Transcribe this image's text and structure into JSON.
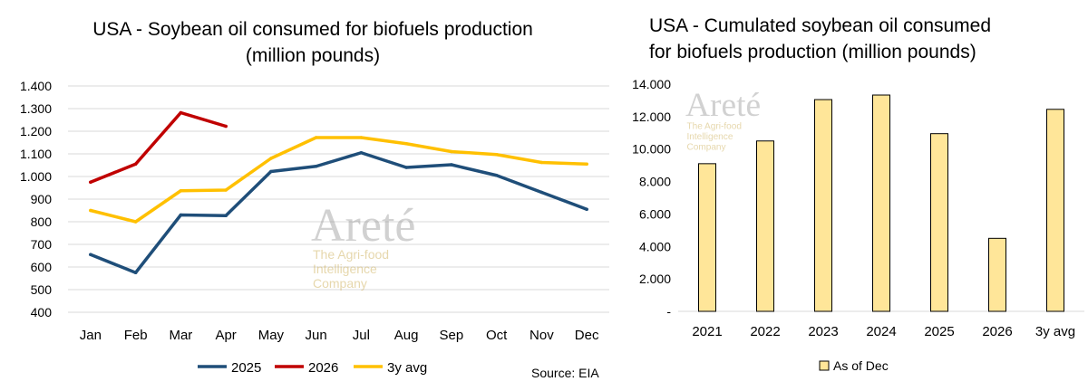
{
  "chart_data": [
    {
      "type": "line",
      "title_line1": "USA -  Soybean oil consumed for biofuels production",
      "title_line2": "(million pounds)",
      "categories": [
        "Jan",
        "Feb",
        "Mar",
        "Apr",
        "May",
        "Jun",
        "Jul",
        "Aug",
        "Sep",
        "Oct",
        "Nov",
        "Dec"
      ],
      "y_ticks": [
        "1.400",
        "1.300",
        "1.200",
        "1.100",
        "1.000",
        "900",
        "800",
        "700",
        "600",
        "500",
        "400"
      ],
      "ylim": [
        400,
        1400
      ],
      "grid": "horizontal",
      "legend_position": "bottom",
      "series": [
        {
          "name": "2025",
          "color": "#1f4e79",
          "values": [
            655,
            575,
            830,
            827,
            1022,
            1045,
            1105,
            1040,
            1052,
            1005,
            930,
            855
          ]
        },
        {
          "name": "2026",
          "color": "#c00000",
          "values": [
            975,
            1055,
            1282,
            1222,
            null,
            null,
            null,
            null,
            null,
            null,
            null,
            null
          ]
        },
        {
          "name": "3y avg",
          "color": "#ffc000",
          "values": [
            850,
            800,
            937,
            940,
            1080,
            1172,
            1172,
            1145,
            1110,
            1097,
            1062,
            1055
          ]
        }
      ],
      "source": "Source: EIA",
      "watermark": {
        "brand": "Areté",
        "tagline": [
          "The Agri-food",
          "Intelligence",
          "Company"
        ]
      }
    },
    {
      "type": "bar",
      "title_line1": "USA - Cumulated soybean oil consumed",
      "title_line2": "for biofuels production (million pounds)",
      "categories": [
        "2021",
        "2022",
        "2023",
        "2024",
        "2025",
        "2026",
        "3y avg"
      ],
      "y_ticks": [
        "14.000",
        "12.000",
        "10.000",
        "8.000",
        "6.000",
        "4.000",
        "2.000",
        "-"
      ],
      "ylim": [
        0,
        14000
      ],
      "grid": "none",
      "legend_position": "bottom",
      "series": [
        {
          "name": "As of Dec",
          "color": "#ffe699",
          "values": [
            9100,
            10500,
            13050,
            13330,
            10950,
            4500,
            12450
          ]
        }
      ],
      "watermark": {
        "brand": "Areté",
        "tagline": [
          "The Agri-food",
          "Intelligence",
          "Company"
        ]
      }
    }
  ]
}
